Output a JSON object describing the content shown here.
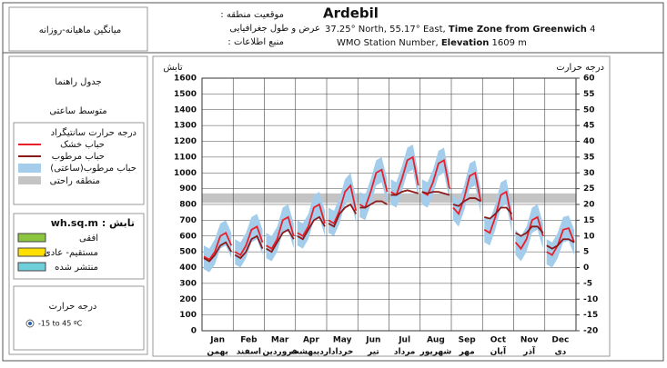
{
  "header": {
    "subtitle": "میانگین ماهیانه-روزانه",
    "location_label": ": موقعیت منطقه",
    "coords_label": "عرض و طول جغرافیایی",
    "source_label": ": منبع اطلاعات",
    "location": "Ardebil",
    "coords": "37.25° North, 55.17° East,",
    "timezone_label": "Time Zone from Greenwich",
    "timezone": "4",
    "station": "WMO Station Number,",
    "elevation_label": "Elevation",
    "elevation": "1609 m"
  },
  "sidebar": {
    "title": "جدول راهنما",
    "mode": "متوسط ساعتی",
    "radiation_title": "wh.sq.m : تابش",
    "radiation_items": [
      {
        "name": "افقی",
        "color": "#8cc63f"
      },
      {
        "name": "مستقیم- عادی",
        "color": "#ffe000"
      },
      {
        "name": "منتشر شده",
        "color": "#6fd0dc"
      }
    ],
    "temp_title": "درجه حرارت",
    "range": "-15 to 45 ºC"
  },
  "chart_data": {
    "type": "line",
    "ylabel": "تابش",
    "y2label": "درجه حرارت",
    "legend_title": "درجه حرارت سانتیگراد",
    "categories": [
      "Jan",
      "Feb",
      "Mar",
      "Apr",
      "May",
      "Jun",
      "Jul",
      "Aug",
      "Sep",
      "Oct",
      "Nov",
      "Dec"
    ],
    "categories_fa": [
      "بهمن",
      "اسفند",
      "فروردین",
      "اردیبهشت",
      "خرداد",
      "تیر",
      "مرداد",
      "شهریور",
      "مهر",
      "آبان",
      "آذر",
      "دی"
    ],
    "ylim": [
      0,
      1600
    ],
    "yticks": [
      0,
      100,
      200,
      300,
      400,
      500,
      600,
      700,
      800,
      900,
      1000,
      1100,
      1200,
      1300,
      1400,
      1500,
      1600
    ],
    "y2lim": [
      -20,
      60
    ],
    "y2ticks": [
      -20,
      -15,
      -10,
      -5,
      0,
      5,
      10,
      15,
      20,
      25,
      30,
      35,
      40,
      45,
      50,
      55,
      60
    ],
    "grid": true,
    "comfort": {
      "name": "منطقه راحتی",
      "color": "#c4c4c4",
      "range": [
        20.5,
        23.5
      ]
    },
    "band": {
      "name": "حباب مرطوب(ساعتی)",
      "color": "#a4cdec",
      "axis": "y2",
      "high": [
        [
          7,
          6,
          9,
          14,
          15,
          11
        ],
        [
          9,
          8,
          11,
          16,
          17,
          12
        ],
        [
          11,
          10,
          13,
          19,
          20,
          14
        ],
        [
          15,
          14,
          17,
          23,
          24,
          18
        ],
        [
          19,
          18,
          22,
          28,
          30,
          22
        ],
        [
          24,
          23,
          28,
          34,
          35,
          28
        ],
        [
          28,
          27,
          32,
          38,
          39,
          30
        ],
        [
          28,
          27,
          31,
          37,
          38,
          29
        ],
        [
          23,
          21,
          26,
          33,
          34,
          25
        ],
        [
          16,
          15,
          20,
          27,
          28,
          19
        ],
        [
          12,
          10,
          13,
          19,
          20,
          14
        ],
        [
          9,
          8,
          11,
          16,
          16.5,
          12
        ]
      ],
      "low": [
        [
          -0.5,
          -1.5,
          1,
          6,
          7,
          3
        ],
        [
          1,
          0,
          3,
          8,
          9,
          4
        ],
        [
          3,
          2,
          5,
          11,
          12,
          6
        ],
        [
          7,
          6,
          9,
          15,
          16,
          10
        ],
        [
          11,
          10,
          14,
          20,
          22,
          14
        ],
        [
          16,
          15,
          20,
          26,
          27,
          20
        ],
        [
          20,
          19,
          24,
          30,
          31,
          22
        ],
        [
          20,
          19,
          23,
          29,
          30,
          21
        ],
        [
          15,
          13,
          18,
          25,
          26,
          17
        ],
        [
          8,
          7,
          12,
          19,
          20,
          11
        ],
        [
          4,
          2,
          5,
          11,
          12,
          6
        ],
        [
          1,
          0,
          3,
          8,
          8.5,
          4
        ]
      ]
    },
    "series": [
      {
        "name": "حباب خشک",
        "color": "#e8202a",
        "axis": "y2",
        "values": [
          [
            3.5,
            2.5,
            5,
            10,
            11,
            7
          ],
          [
            5,
            4,
            7,
            12,
            13,
            8
          ],
          [
            7,
            6,
            9,
            15,
            16,
            10
          ],
          [
            11,
            10,
            13,
            19,
            20,
            14
          ],
          [
            15,
            14,
            18,
            24,
            26,
            18
          ],
          [
            20,
            19,
            24,
            30,
            31,
            24
          ],
          [
            24,
            23,
            28,
            34,
            35,
            26
          ],
          [
            24,
            23,
            27,
            33,
            34,
            25
          ],
          [
            19,
            17,
            22,
            29,
            30,
            21
          ],
          [
            12,
            11,
            16,
            23,
            24,
            15
          ],
          [
            8,
            6,
            9,
            15,
            16,
            10
          ],
          [
            5,
            4,
            7,
            12,
            12.5,
            8
          ]
        ]
      },
      {
        "name": "حباب مرطوب",
        "color": "#8b1a1a",
        "axis": "y2",
        "values": [
          [
            3,
            2,
            4,
            7,
            8,
            5
          ],
          [
            4,
            3,
            5,
            9,
            10,
            6
          ],
          [
            6,
            5,
            8,
            11,
            12,
            9
          ],
          [
            10,
            9,
            12,
            15,
            16,
            13
          ],
          [
            14,
            13,
            17,
            19,
            20,
            17
          ],
          [
            19,
            19,
            20,
            21,
            21,
            20
          ],
          [
            23,
            23,
            24,
            24.5,
            24,
            23.5
          ],
          [
            24,
            23.5,
            24,
            24,
            23.5,
            23
          ],
          [
            20,
            19.5,
            21,
            22,
            22,
            21
          ],
          [
            16,
            15.5,
            17,
            19,
            19,
            17
          ],
          [
            11,
            10,
            11,
            13,
            13,
            11
          ],
          [
            7,
            6,
            7,
            9,
            9,
            8
          ]
        ]
      }
    ]
  }
}
